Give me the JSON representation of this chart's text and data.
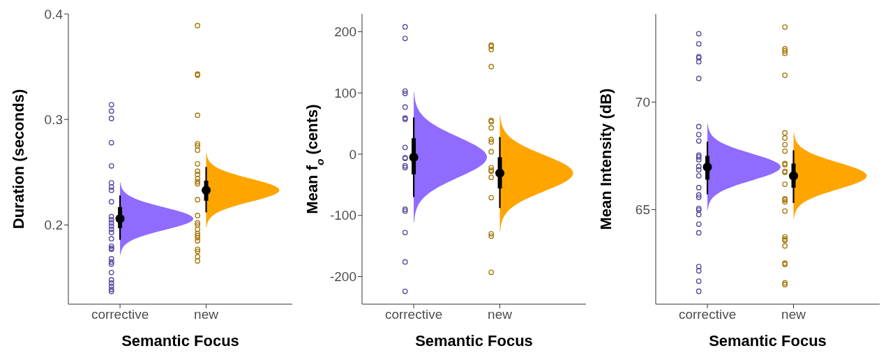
{
  "chart_data": [
    {
      "type": "scatter",
      "categories": [
        "corrective",
        "new"
      ],
      "xlabel": "Semantic Focus",
      "ylabel": "Duration (seconds)",
      "ylim": [
        0.125,
        0.4
      ],
      "yticks": [
        0.2,
        0.3,
        0.4
      ],
      "colors": [
        "#8f6cff",
        "#ffa500"
      ],
      "series": [
        {
          "x": [
            "corrective",
            "corrective",
            "corrective",
            "corrective",
            "corrective",
            "corrective",
            "corrective",
            "corrective",
            "corrective",
            "corrective",
            "corrective",
            "corrective",
            "corrective",
            "corrective",
            "corrective",
            "corrective",
            "corrective",
            "corrective",
            "corrective",
            "corrective",
            "corrective",
            "corrective",
            "corrective",
            "corrective",
            "corrective",
            "corrective",
            "corrective",
            "corrective"
          ],
          "values": [
            0.314,
            0.308,
            0.301,
            0.278,
            0.256,
            0.24,
            0.236,
            0.233,
            0.222,
            0.208,
            0.205,
            0.202,
            0.199,
            0.196,
            0.193,
            0.187,
            0.18,
            0.178,
            0.177,
            0.168,
            0.165,
            0.163,
            0.155,
            0.148,
            0.145,
            0.142,
            0.139,
            0.137
          ],
          "color": "#5b4a9e",
          "marker": "circle"
        },
        {
          "x": [
            "new",
            "new",
            "new",
            "new",
            "new",
            "new",
            "new",
            "new",
            "new",
            "new",
            "new",
            "new",
            "new",
            "new",
            "new",
            "new",
            "new",
            "new",
            "new",
            "new",
            "new",
            "new",
            "new",
            "new",
            "new",
            "new"
          ],
          "values": [
            0.389,
            0.343,
            0.342,
            0.304,
            0.277,
            0.275,
            0.271,
            0.258,
            0.251,
            0.248,
            0.244,
            0.241,
            0.239,
            0.224,
            0.209,
            0.202,
            0.2,
            0.196,
            0.192,
            0.19,
            0.188,
            0.185,
            0.177,
            0.175,
            0.17,
            0.166
          ],
          "color": "#a87a10",
          "marker": "circle"
        },
        {
          "type": "box",
          "boxes": [
            {
              "low": 0.186,
              "q1": 0.197,
              "median": 0.206,
              "q3": 0.217,
              "high": 0.228
            },
            {
              "low": 0.212,
              "q1": 0.223,
              "median": 0.233,
              "q3": 0.242,
              "high": 0.255
            }
          ],
          "color": "#000000"
        }
      ]
    },
    {
      "type": "scatter",
      "categories": [
        "corrective",
        "new"
      ],
      "xlabel": "Semantic Focus",
      "ylabel": "Mean f$_{o}$ (cents)",
      "ylim": [
        -245,
        229
      ],
      "yticks": [
        -200,
        -100,
        0,
        100,
        200
      ],
      "colors": [
        "#8f6cff",
        "#ffa500"
      ],
      "series": [
        {
          "x": [
            "corrective",
            "corrective",
            "corrective",
            "corrective",
            "corrective",
            "corrective",
            "corrective",
            "corrective",
            "corrective",
            "corrective",
            "corrective",
            "corrective",
            "corrective",
            "corrective",
            "corrective",
            "corrective",
            "corrective"
          ],
          "values": [
            208,
            189,
            103,
            99,
            77,
            59,
            57,
            11,
            -6,
            -7,
            -19,
            -22,
            -90,
            -93,
            -128,
            -176,
            -224
          ],
          "color": "#5b4a9e",
          "marker": "circle"
        },
        {
          "x": [
            "new",
            "new",
            "new",
            "new",
            "new",
            "new",
            "new",
            "new",
            "new",
            "new",
            "new",
            "new",
            "new",
            "new",
            "new",
            "new",
            "new",
            "new"
          ],
          "values": [
            178,
            176,
            171,
            143,
            55,
            53,
            43,
            24,
            20,
            4,
            -22,
            -26,
            -28,
            -38,
            -71,
            -130,
            -134,
            -193
          ],
          "color": "#a87a10",
          "marker": "circle"
        },
        {
          "type": "box",
          "boxes": [
            {
              "low": -70,
              "q1": -33,
              "median": -5,
              "q3": 26,
              "high": 60
            },
            {
              "low": -88,
              "q1": -56,
              "median": -31,
              "q3": -5,
              "high": 28
            }
          ],
          "color": "#000000"
        }
      ]
    },
    {
      "type": "scatter",
      "categories": [
        "corrective",
        "new"
      ],
      "xlabel": "Semantic Focus",
      "ylabel": "Mean Intensity (dB)",
      "ylim": [
        60.6,
        74.1
      ],
      "yticks": [
        65,
        70
      ],
      "colors": [
        "#8f6cff",
        "#ffa500"
      ],
      "series": [
        {
          "x": [
            "corrective",
            "corrective",
            "corrective",
            "corrective",
            "corrective",
            "corrective",
            "corrective",
            "corrective",
            "corrective",
            "corrective",
            "corrective",
            "corrective",
            "corrective",
            "corrective",
            "corrective",
            "corrective",
            "corrective",
            "corrective",
            "corrective",
            "corrective",
            "corrective",
            "corrective",
            "corrective",
            "corrective",
            "corrective",
            "corrective",
            "corrective"
          ],
          "values": [
            73.18,
            72.71,
            72.11,
            72.06,
            71.88,
            71.1,
            68.86,
            68.49,
            68.19,
            67.53,
            67.45,
            67.32,
            67.01,
            66.85,
            66.57,
            66.02,
            65.68,
            65.57,
            65.05,
            64.98,
            64.77,
            64.32,
            63.92,
            62.35,
            62.15,
            61.67,
            61.2
          ],
          "color": "#5b4a9e",
          "marker": "circle"
        },
        {
          "x": [
            "new",
            "new",
            "new",
            "new",
            "new",
            "new",
            "new",
            "new",
            "new",
            "new",
            "new",
            "new",
            "new",
            "new",
            "new",
            "new",
            "new",
            "new",
            "new",
            "new",
            "new",
            "new",
            "new",
            "new",
            "new",
            "new"
          ],
          "values": [
            73.49,
            72.48,
            72.38,
            72.27,
            71.25,
            68.57,
            68.33,
            68.02,
            67.72,
            67.14,
            67.09,
            66.78,
            66.73,
            66.18,
            65.5,
            65.45,
            65.36,
            64.93,
            63.73,
            63.63,
            63.57,
            63.31,
            62.51,
            62.45,
            61.59,
            61.51
          ],
          "color": "#a87a10",
          "marker": "circle"
        },
        {
          "type": "box",
          "boxes": [
            {
              "low": 65.71,
              "q1": 66.39,
              "median": 66.98,
              "q3": 67.5,
              "high": 68.16
            },
            {
              "low": 65.31,
              "q1": 66.02,
              "median": 66.57,
              "q3": 67.14,
              "high": 67.76
            }
          ],
          "color": "#000000"
        }
      ]
    }
  ]
}
